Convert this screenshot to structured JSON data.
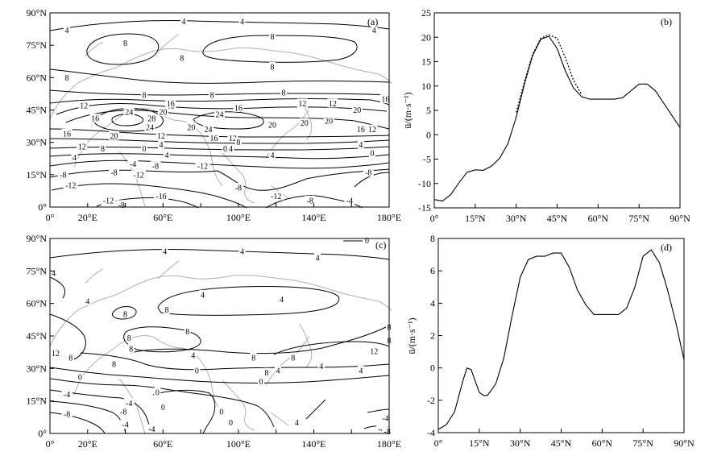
{
  "chart_data": [
    {
      "panel": "(a)",
      "type": "contour-map",
      "xlim": [
        0,
        180
      ],
      "ylim": [
        0,
        90
      ],
      "x_ticks": [
        0,
        20,
        40,
        60,
        80,
        100,
        120,
        140,
        160,
        180
      ],
      "x_tick_labels": [
        "0°",
        "20°E",
        "",
        "60°E",
        "",
        "100°E",
        "",
        "140°E",
        "",
        "180°E"
      ],
      "y_ticks": [
        0,
        15,
        30,
        45,
        60,
        75,
        90
      ],
      "y_tick_labels": [
        "0°",
        "15°N",
        "30°N",
        "45°N",
        "60°N",
        "75°N",
        "90°N"
      ],
      "contour_labels": [
        {
          "text": "4",
          "lon": 9,
          "lat": 82
        },
        {
          "text": "4",
          "lon": 71,
          "lat": 86
        },
        {
          "text": "4",
          "lon": 102,
          "lat": 86
        },
        {
          "text": "4",
          "lon": 172,
          "lat": 82
        },
        {
          "text": "8",
          "lon": 40,
          "lat": 76
        },
        {
          "text": "8",
          "lon": 118,
          "lat": 79
        },
        {
          "text": "8",
          "lon": 70,
          "lat": 69
        },
        {
          "text": "8",
          "lon": 118,
          "lat": 65
        },
        {
          "text": "8",
          "lon": 9,
          "lat": 60
        },
        {
          "text": "8",
          "lon": 50,
          "lat": 52
        },
        {
          "text": "8",
          "lon": 86,
          "lat": 52
        },
        {
          "text": "8",
          "lon": 124,
          "lat": 53
        },
        {
          "text": "12",
          "lon": 18,
          "lat": 47
        },
        {
          "text": "12",
          "lon": 64,
          "lat": 47
        },
        {
          "text": "12",
          "lon": 134,
          "lat": 48
        },
        {
          "text": "12",
          "lon": 150,
          "lat": 48
        },
        {
          "text": "16",
          "lon": 64,
          "lat": 48
        },
        {
          "text": "16",
          "lon": 100,
          "lat": 46
        },
        {
          "text": "16",
          "lon": 178,
          "lat": 50
        },
        {
          "text": "16",
          "lon": 24,
          "lat": 41
        },
        {
          "text": "20",
          "lon": 60,
          "lat": 44
        },
        {
          "text": "20",
          "lon": 163,
          "lat": 45
        },
        {
          "text": "24",
          "lon": 42,
          "lat": 44
        },
        {
          "text": "24",
          "lon": 90,
          "lat": 43
        },
        {
          "text": "28",
          "lon": 54,
          "lat": 41
        },
        {
          "text": "24",
          "lon": 53,
          "lat": 37
        },
        {
          "text": "20",
          "lon": 118,
          "lat": 38
        },
        {
          "text": "20",
          "lon": 148,
          "lat": 40
        },
        {
          "text": "20",
          "lon": 75,
          "lat": 37
        },
        {
          "text": "16",
          "lon": 9,
          "lat": 34
        },
        {
          "text": "20",
          "lon": 34,
          "lat": 33
        },
        {
          "text": "24",
          "lon": 84,
          "lat": 36
        },
        {
          "text": "16",
          "lon": 87,
          "lat": 32
        },
        {
          "text": "16",
          "lon": 165,
          "lat": 36
        },
        {
          "text": "12",
          "lon": 171,
          "lat": 36
        },
        {
          "text": "12",
          "lon": 59,
          "lat": 33
        },
        {
          "text": "12",
          "lon": 97,
          "lat": 32
        },
        {
          "text": "8",
          "lon": 100,
          "lat": 30
        },
        {
          "text": "12",
          "lon": 17,
          "lat": 28
        },
        {
          "text": "8",
          "lon": 28,
          "lat": 27
        },
        {
          "text": "4",
          "lon": 59,
          "lat": 29
        },
        {
          "text": "0",
          "lon": 50,
          "lat": 27
        },
        {
          "text": "0",
          "lon": 93,
          "lat": 27
        },
        {
          "text": "4",
          "lon": 96,
          "lat": 27
        },
        {
          "text": "4",
          "lon": 165,
          "lat": 29
        },
        {
          "text": "0",
          "lon": 171,
          "lat": 25
        },
        {
          "text": "4",
          "lon": 13,
          "lat": 23
        },
        {
          "text": "4",
          "lon": 62,
          "lat": 24
        },
        {
          "text": "4",
          "lon": 118,
          "lat": 24
        },
        {
          "text": "-4",
          "lon": 44,
          "lat": 20
        },
        {
          "text": "-8",
          "lon": 56,
          "lat": 19
        },
        {
          "text": "-8",
          "lon": 34,
          "lat": 16
        },
        {
          "text": "-12",
          "lon": 47,
          "lat": 15
        },
        {
          "text": "-12",
          "lon": 81,
          "lat": 19
        },
        {
          "text": "-8",
          "lon": 7,
          "lat": 15
        },
        {
          "text": "-8",
          "lon": 169,
          "lat": 16
        },
        {
          "text": "-12",
          "lon": 11,
          "lat": 10
        },
        {
          "text": "-8",
          "lon": 100,
          "lat": 9
        },
        {
          "text": "-12",
          "lon": 120,
          "lat": 5
        },
        {
          "text": "-16",
          "lon": 59,
          "lat": 5
        },
        {
          "text": "-12",
          "lon": 31,
          "lat": 3
        },
        {
          "text": "-8",
          "lon": 38,
          "lat": 1
        },
        {
          "text": "-8",
          "lon": 138,
          "lat": 3
        },
        {
          "text": "-4",
          "lon": 159,
          "lat": 3
        },
        {
          "text": "20",
          "lon": 135,
          "lat": 39
        }
      ]
    },
    {
      "panel": "(b)",
      "type": "line",
      "xlim": [
        0,
        90
      ],
      "ylim": [
        -15,
        25
      ],
      "x_ticks": [
        0,
        15,
        30,
        45,
        60,
        75,
        90
      ],
      "x_tick_labels": [
        "0°",
        "15°N",
        "30°N",
        "45°N",
        "60°N",
        "75°N",
        "90°N"
      ],
      "y_ticks": [
        -15,
        -10,
        -5,
        0,
        5,
        10,
        15,
        20,
        25
      ],
      "y_tick_labels": [
        "-15",
        "-10",
        "-5",
        "0",
        "5",
        "10",
        "15",
        "20",
        "25"
      ],
      "ylabel": "ū/(m·s⁻¹)",
      "series": [
        {
          "style": "solid",
          "x": [
            0,
            3,
            6,
            9,
            12,
            15,
            18,
            21,
            24,
            27,
            30,
            33,
            36,
            39,
            42,
            45,
            48,
            51,
            54,
            57,
            60,
            63,
            66,
            69,
            72,
            75,
            78,
            81,
            84,
            87,
            90
          ],
          "y": [
            -13.3,
            -13.6,
            -12.3,
            -9.9,
            -7.7,
            -7.2,
            -7.3,
            -6.4,
            -4.8,
            -1.8,
            3.6,
            10.3,
            16.2,
            19.6,
            20.2,
            17.7,
            13.1,
            9.6,
            7.8,
            7.3,
            7.3,
            7.3,
            7.3,
            7.6,
            9.0,
            10.4,
            10.4,
            9.0,
            6.5,
            4.0,
            1.5
          ]
        },
        {
          "style": "dotted",
          "x": [
            30,
            33,
            36,
            39,
            42,
            45,
            48,
            51,
            54
          ],
          "y": [
            4.6,
            10.8,
            16.5,
            19.8,
            20.5,
            19.8,
            15.8,
            11.2,
            8.2
          ]
        }
      ]
    },
    {
      "panel": "(c)",
      "type": "contour-map",
      "xlim": [
        0,
        180
      ],
      "ylim": [
        0,
        90
      ],
      "x_ticks": [
        0,
        20,
        40,
        60,
        80,
        100,
        120,
        140,
        160,
        180
      ],
      "x_tick_labels": [
        "0°",
        "20°E",
        "",
        "60°E",
        "",
        "100°E",
        "",
        "140°E",
        "",
        "180°E"
      ],
      "y_ticks": [
        0,
        15,
        30,
        45,
        60,
        75,
        90
      ],
      "y_tick_labels": [
        "0°",
        "15°N",
        "30°N",
        "45°N",
        "60°N",
        "75°N",
        "90°N"
      ],
      "legend_label": "0",
      "contour_labels": [
        {
          "text": "4",
          "lon": 61,
          "lat": 84
        },
        {
          "text": "4",
          "lon": 102,
          "lat": 84
        },
        {
          "text": "4",
          "lon": 142,
          "lat": 81
        },
        {
          "text": "4",
          "lon": 2,
          "lat": 74
        },
        {
          "text": "4",
          "lon": 20,
          "lat": 61
        },
        {
          "text": "4",
          "lon": 81,
          "lat": 64
        },
        {
          "text": "4",
          "lon": 123,
          "lat": 62
        },
        {
          "text": "8",
          "lon": 40,
          "lat": 55
        },
        {
          "text": "8",
          "lon": 62,
          "lat": 57
        },
        {
          "text": "8",
          "lon": 73,
          "lat": 47
        },
        {
          "text": "8",
          "lon": 42,
          "lat": 44
        },
        {
          "text": "8",
          "lon": 43,
          "lat": 39
        },
        {
          "text": "8",
          "lon": 108,
          "lat": 35
        },
        {
          "text": "8",
          "lon": 129,
          "lat": 35
        },
        {
          "text": "8",
          "lon": 180,
          "lat": 49
        },
        {
          "text": "8",
          "lon": 180,
          "lat": 43
        },
        {
          "text": "12",
          "lon": 3,
          "lat": 37
        },
        {
          "text": "12",
          "lon": 172,
          "lat": 38
        },
        {
          "text": "8",
          "lon": 11,
          "lat": 35
        },
        {
          "text": "4",
          "lon": 76,
          "lat": 36
        },
        {
          "text": "8",
          "lon": 34,
          "lat": 32
        },
        {
          "text": "8",
          "lon": 115,
          "lat": 28
        },
        {
          "text": "4",
          "lon": 121,
          "lat": 29
        },
        {
          "text": "4",
          "lon": 144,
          "lat": 31
        },
        {
          "text": "4",
          "lon": 165,
          "lat": 29
        },
        {
          "text": "0",
          "lon": 16,
          "lat": 26
        },
        {
          "text": "0",
          "lon": 78,
          "lat": 29
        },
        {
          "text": "0",
          "lon": 112,
          "lat": 24
        },
        {
          "text": "0",
          "lon": 57,
          "lat": 19
        },
        {
          "text": "-4",
          "lon": 9,
          "lat": 18
        },
        {
          "text": "-4",
          "lon": 42,
          "lat": 14
        },
        {
          "text": "-4",
          "lon": 178,
          "lat": 7
        },
        {
          "text": "-8",
          "lon": 9,
          "lat": 9
        },
        {
          "text": "-8",
          "lon": 39,
          "lat": 10
        },
        {
          "text": "-4",
          "lon": 40,
          "lat": 4
        },
        {
          "text": "0",
          "lon": 60,
          "lat": 12
        },
        {
          "text": "0",
          "lon": 91,
          "lat": 10
        },
        {
          "text": "0",
          "lon": 96,
          "lat": 5
        },
        {
          "text": "4",
          "lon": 131,
          "lat": 5
        },
        {
          "text": "-4",
          "lon": 54,
          "lat": 2
        },
        {
          "text": "-4",
          "lon": 176,
          "lat": 2
        },
        {
          "text": "-8",
          "lon": 179,
          "lat": 1
        }
      ]
    },
    {
      "panel": "(d)",
      "type": "line",
      "xlim": [
        0,
        90
      ],
      "ylim": [
        -4,
        8
      ],
      "x_ticks": [
        0,
        15,
        30,
        45,
        60,
        75,
        90
      ],
      "x_tick_labels": [
        "0°",
        "15°N",
        "30°N",
        "45°N",
        "60°N",
        "75°N",
        "90°N"
      ],
      "y_ticks": [
        -4,
        -2,
        0,
        2,
        4,
        6,
        8
      ],
      "y_tick_labels": [
        "-4",
        "-2",
        "0",
        "2",
        "4",
        "6",
        "8"
      ],
      "ylabel": "ū/(m·s⁻¹)",
      "series": [
        {
          "style": "solid",
          "x": [
            0,
            3,
            6,
            9,
            10.5,
            12,
            15,
            16.5,
            18,
            21,
            24,
            27,
            30,
            33,
            36,
            39,
            42,
            45,
            48,
            51,
            54,
            57,
            60,
            63,
            66,
            69,
            72,
            75,
            78,
            81,
            84,
            87,
            90
          ],
          "y": [
            -3.8,
            -3.5,
            -2.7,
            -0.8,
            0.0,
            -0.1,
            -1.5,
            -1.7,
            -1.7,
            -1.0,
            0.6,
            3.2,
            5.6,
            6.7,
            6.9,
            6.9,
            7.1,
            7.1,
            6.2,
            4.8,
            3.9,
            3.3,
            3.3,
            3.3,
            3.3,
            3.7,
            5.0,
            6.9,
            7.3,
            6.5,
            4.8,
            2.8,
            0.5
          ]
        }
      ]
    }
  ]
}
